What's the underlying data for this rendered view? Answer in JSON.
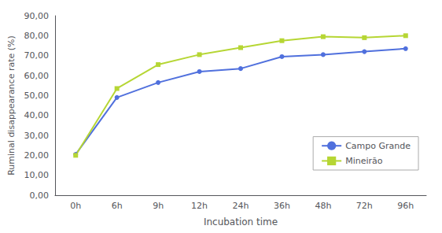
{
  "chart_data": {
    "type": "line",
    "xlabel": "Incubation time",
    "ylabel": "Ruminal disappearance rate (%)",
    "categories": [
      "0h",
      "6h",
      "9h",
      "12h",
      "24h",
      "36h",
      "48h",
      "72h",
      "96h"
    ],
    "series": [
      {
        "name": "Campo Grande",
        "marker": "circle",
        "values": [
          20.5,
          49.0,
          56.5,
          62.0,
          63.5,
          69.5,
          70.5,
          72.0,
          73.5
        ]
      },
      {
        "name": "Mineirão",
        "marker": "square",
        "values": [
          20.0,
          53.5,
          65.5,
          70.5,
          74.0,
          77.5,
          79.5,
          79.0,
          80.0
        ]
      }
    ],
    "ylim": [
      0,
      90
    ],
    "yticks": [
      {
        "value": 0,
        "label": "0,00"
      },
      {
        "value": 10,
        "label": "10,00"
      },
      {
        "value": 20,
        "label": "20,00"
      },
      {
        "value": 30,
        "label": "30,00"
      },
      {
        "value": 40,
        "label": "40,00"
      },
      {
        "value": 50,
        "label": "50,00"
      },
      {
        "value": 60,
        "label": "60,00"
      },
      {
        "value": 70,
        "label": "70,00"
      },
      {
        "value": 80,
        "label": "80,00"
      },
      {
        "value": 90,
        "label": "90,00"
      }
    ],
    "grid": false,
    "legend": "lower right"
  }
}
